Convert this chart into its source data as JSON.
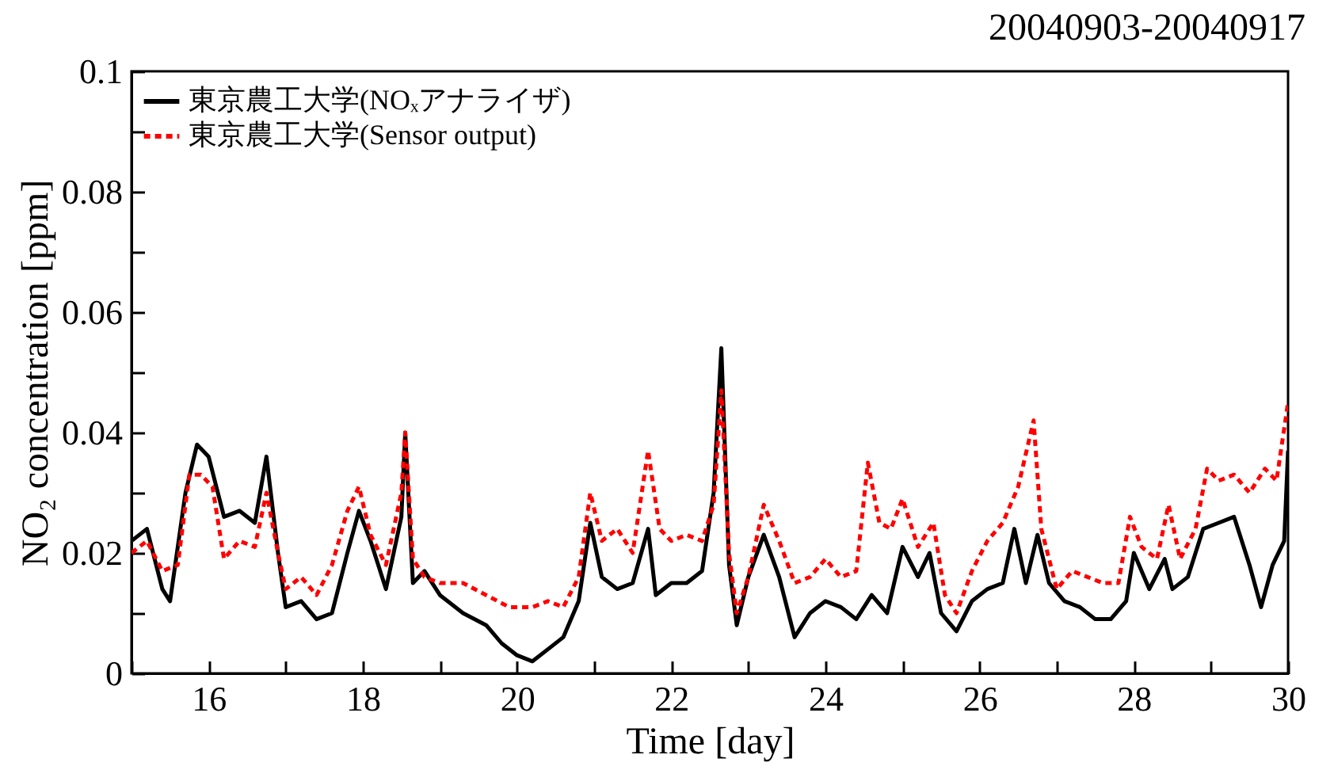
{
  "chart_data": {
    "type": "line",
    "title": "20040903-20040917",
    "xlabel": "Time [day]",
    "ylabel": "NO₂ concentration [ppm]",
    "xlim": [
      15,
      30
    ],
    "ylim": [
      0,
      0.1
    ],
    "xticks": [
      {
        "value": 15,
        "label": null
      },
      16,
      {
        "value": 17,
        "label": null
      },
      18,
      {
        "value": 19,
        "label": null
      },
      20,
      {
        "value": 21,
        "label": null
      },
      22,
      {
        "value": 23,
        "label": null
      },
      24,
      {
        "value": 25,
        "label": null
      },
      26,
      {
        "value": 27,
        "label": null
      },
      28,
      {
        "value": 29,
        "label": null
      },
      30
    ],
    "yticks": [
      0,
      {
        "value": 0.01,
        "label": null
      },
      0.02,
      {
        "value": 0.03,
        "label": null
      },
      0.04,
      {
        "value": 0.05,
        "label": null
      },
      0.06,
      {
        "value": 0.07,
        "label": null
      },
      0.08,
      {
        "value": 0.09,
        "label": null
      },
      0.1
    ],
    "grid": false,
    "legend": "top left",
    "series": [
      {
        "name": "東京農工大学(NOₓアナライザ)",
        "color": "#000000",
        "line_style": "solid",
        "x": [
          15.0,
          15.2,
          15.4,
          15.5,
          15.7,
          15.85,
          16.0,
          16.2,
          16.4,
          16.6,
          16.75,
          16.9,
          17.0,
          17.2,
          17.4,
          17.6,
          17.8,
          17.95,
          18.1,
          18.3,
          18.5,
          18.55,
          18.65,
          18.8,
          19.0,
          19.3,
          19.6,
          19.8,
          20.0,
          20.2,
          20.4,
          20.6,
          20.8,
          20.95,
          21.1,
          21.3,
          21.5,
          21.7,
          21.8,
          22.0,
          22.2,
          22.4,
          22.55,
          22.65,
          22.75,
          22.85,
          23.0,
          23.2,
          23.4,
          23.6,
          23.8,
          24.0,
          24.2,
          24.4,
          24.6,
          24.8,
          25.0,
          25.2,
          25.35,
          25.5,
          25.7,
          25.9,
          26.1,
          26.3,
          26.45,
          26.6,
          26.75,
          26.9,
          27.1,
          27.3,
          27.5,
          27.7,
          27.9,
          28.0,
          28.2,
          28.4,
          28.5,
          28.7,
          28.9,
          29.1,
          29.3,
          29.5,
          29.65,
          29.8,
          29.95,
          30.0
        ],
        "values": [
          0.022,
          0.024,
          0.014,
          0.012,
          0.03,
          0.038,
          0.036,
          0.026,
          0.027,
          0.025,
          0.036,
          0.02,
          0.011,
          0.012,
          0.009,
          0.01,
          0.02,
          0.027,
          0.022,
          0.014,
          0.026,
          0.04,
          0.015,
          0.017,
          0.013,
          0.01,
          0.008,
          0.005,
          0.003,
          0.002,
          0.004,
          0.006,
          0.012,
          0.025,
          0.016,
          0.014,
          0.015,
          0.024,
          0.013,
          0.015,
          0.015,
          0.017,
          0.03,
          0.054,
          0.018,
          0.008,
          0.016,
          0.023,
          0.016,
          0.006,
          0.01,
          0.012,
          0.011,
          0.009,
          0.013,
          0.01,
          0.021,
          0.016,
          0.02,
          0.01,
          0.007,
          0.012,
          0.014,
          0.015,
          0.024,
          0.015,
          0.023,
          0.015,
          0.012,
          0.011,
          0.009,
          0.009,
          0.012,
          0.02,
          0.014,
          0.019,
          0.014,
          0.016,
          0.024,
          0.025,
          0.026,
          0.018,
          0.011,
          0.018,
          0.022,
          0.037
        ]
      },
      {
        "name": "東京農工大学(Sensor output)",
        "color": "#ff0000",
        "line_style": "dashed",
        "x": [
          15.0,
          15.2,
          15.4,
          15.6,
          15.75,
          15.9,
          16.05,
          16.2,
          16.4,
          16.6,
          16.75,
          16.9,
          17.0,
          17.2,
          17.4,
          17.6,
          17.8,
          17.95,
          18.1,
          18.3,
          18.5,
          18.55,
          18.65,
          18.8,
          19.0,
          19.3,
          19.6,
          19.9,
          20.2,
          20.4,
          20.6,
          20.8,
          20.95,
          21.1,
          21.3,
          21.5,
          21.7,
          21.85,
          22.0,
          22.2,
          22.4,
          22.55,
          22.65,
          22.75,
          22.85,
          23.0,
          23.2,
          23.4,
          23.6,
          23.8,
          24.0,
          24.2,
          24.4,
          24.55,
          24.7,
          24.85,
          25.0,
          25.2,
          25.4,
          25.55,
          25.7,
          25.9,
          26.1,
          26.3,
          26.5,
          26.7,
          26.8,
          27.0,
          27.2,
          27.4,
          27.6,
          27.8,
          27.95,
          28.1,
          28.3,
          28.45,
          28.6,
          28.8,
          28.95,
          29.1,
          29.3,
          29.5,
          29.7,
          29.85,
          30.0
        ],
        "values": [
          0.02,
          0.022,
          0.017,
          0.018,
          0.033,
          0.033,
          0.031,
          0.019,
          0.022,
          0.021,
          0.03,
          0.02,
          0.014,
          0.016,
          0.013,
          0.018,
          0.027,
          0.031,
          0.023,
          0.018,
          0.03,
          0.04,
          0.019,
          0.016,
          0.015,
          0.015,
          0.013,
          0.011,
          0.011,
          0.012,
          0.011,
          0.016,
          0.03,
          0.022,
          0.024,
          0.02,
          0.037,
          0.024,
          0.022,
          0.023,
          0.022,
          0.028,
          0.047,
          0.02,
          0.01,
          0.016,
          0.028,
          0.022,
          0.015,
          0.016,
          0.019,
          0.016,
          0.017,
          0.035,
          0.025,
          0.024,
          0.029,
          0.021,
          0.025,
          0.013,
          0.01,
          0.017,
          0.022,
          0.025,
          0.031,
          0.042,
          0.024,
          0.014,
          0.017,
          0.016,
          0.015,
          0.015,
          0.026,
          0.021,
          0.019,
          0.028,
          0.019,
          0.024,
          0.034,
          0.032,
          0.033,
          0.03,
          0.034,
          0.032,
          0.045
        ]
      }
    ]
  }
}
